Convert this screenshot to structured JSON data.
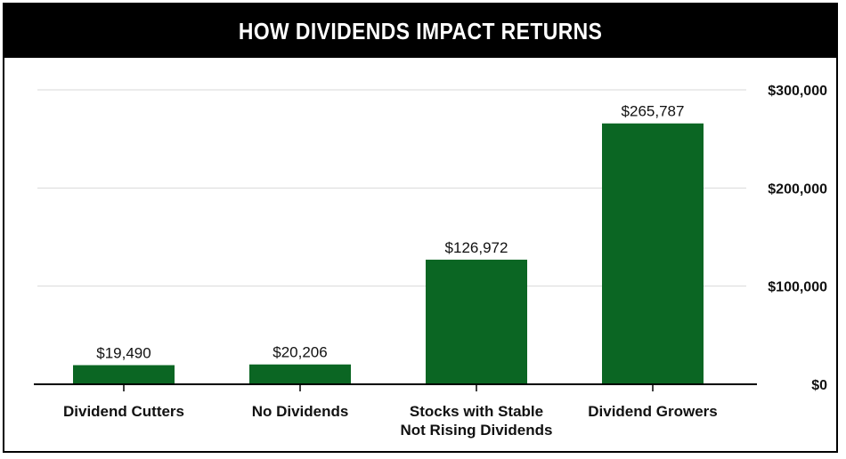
{
  "chart_data": {
    "type": "bar",
    "title": "HOW DIVIDENDS IMPACT RETURNS",
    "categories": [
      "Dividend Cutters",
      "No Dividends",
      "Stocks with Stable Not Rising Dividends",
      "Dividend Growers"
    ],
    "category_label_lines": [
      [
        "Dividend Cutters"
      ],
      [
        "No Dividends"
      ],
      [
        "Stocks with Stable",
        "Not Rising Dividends"
      ],
      [
        "Dividend Growers"
      ]
    ],
    "values": [
      19490,
      20206,
      126972,
      265787
    ],
    "value_labels": [
      "$19,490",
      "$20,206",
      "$126,972",
      "$265,787"
    ],
    "ylim": [
      0,
      300000
    ],
    "yticks": [
      0,
      100000,
      200000,
      300000
    ],
    "ytick_labels": [
      "$0",
      "$100,000",
      "$200,000",
      "$300,000"
    ],
    "y_axis_side": "right",
    "grid": true,
    "bar_color": "#0b6623",
    "grid_color": "#d9d9d9",
    "axis_color": "#000000"
  }
}
